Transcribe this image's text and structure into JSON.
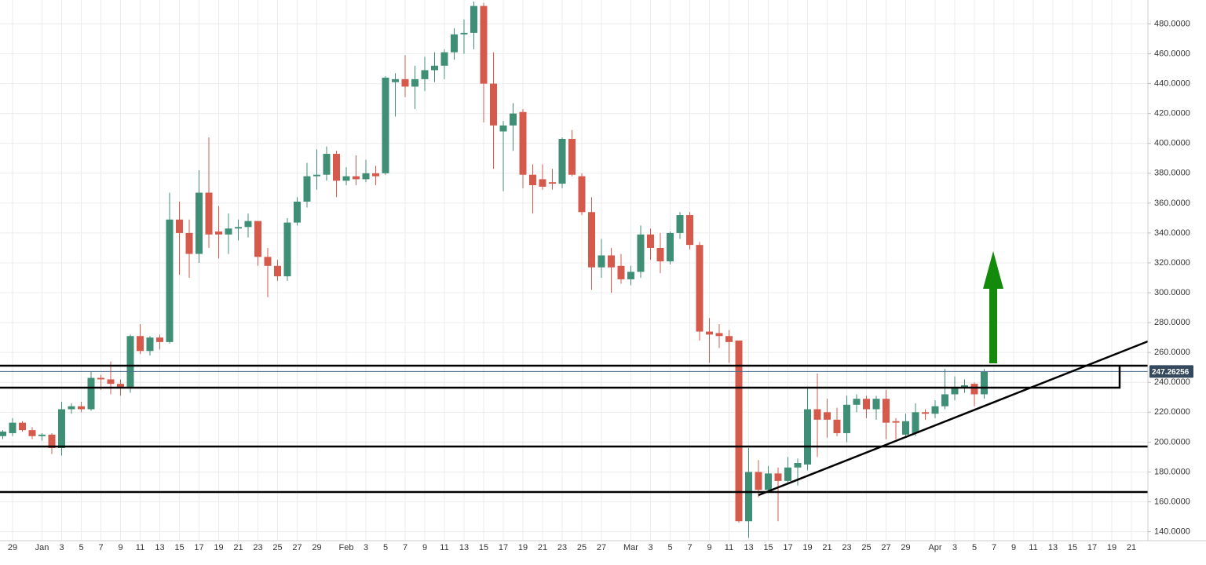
{
  "chart_data": {
    "type": "candlestick",
    "categories": [
      null,
      "29",
      null,
      null,
      "Jan",
      null,
      "3",
      null,
      "5",
      null,
      "7",
      null,
      "9",
      null,
      "11",
      null,
      "13",
      null,
      "15",
      null,
      "17",
      null,
      "19",
      null,
      "21",
      null,
      "23",
      null,
      "25",
      null,
      "27",
      null,
      "29",
      null,
      null,
      "Feb",
      null,
      "3",
      null,
      "5",
      null,
      "7",
      null,
      "9",
      null,
      "11",
      null,
      "13",
      null,
      "15",
      null,
      "17",
      null,
      "19",
      null,
      "21",
      null,
      "23",
      null,
      "25",
      null,
      "27",
      null,
      null,
      "Mar",
      null,
      "3",
      null,
      "5",
      null,
      "7",
      null,
      "9",
      null,
      "11",
      null,
      "13",
      null,
      "15",
      null,
      "17",
      null,
      "19",
      null,
      "21",
      null,
      "23",
      null,
      "25",
      null,
      "27",
      null,
      "29",
      null,
      null,
      "Apr",
      null,
      "3",
      null,
      "5",
      null,
      "7",
      null,
      "9",
      null,
      "11",
      null,
      "13",
      null,
      "15",
      null,
      "17",
      null,
      "19",
      null,
      "21",
      null
    ],
    "open": [
      204,
      206,
      213,
      208,
      204,
      205,
      196,
      222,
      224,
      222,
      243,
      242,
      239,
      237,
      271,
      261,
      270,
      267,
      349,
      340,
      326,
      367,
      341,
      339,
      343,
      344,
      348,
      324,
      318,
      311,
      347,
      361,
      378,
      379,
      393,
      375,
      378,
      376,
      380,
      380,
      441,
      443,
      438,
      443,
      449,
      452,
      461,
      473,
      474,
      492,
      440,
      408,
      412,
      421,
      379,
      376,
      374,
      373,
      403,
      378,
      354,
      317,
      325,
      318,
      309,
      314,
      339,
      330,
      321,
      340,
      352,
      332,
      274,
      273,
      271,
      268,
      147,
      180,
      168,
      179,
      174,
      183,
      185,
      222,
      220,
      215,
      206,
      225,
      229,
      222,
      229,
      214,
      205,
      206,
      220,
      219,
      224,
      232,
      236,
      239,
      232,
      null,
      null,
      null,
      null,
      null,
      null,
      null,
      null,
      null,
      null,
      null,
      null,
      null,
      null,
      null,
      null
    ],
    "high": [
      208,
      216,
      214,
      210,
      206,
      206,
      227,
      226,
      227,
      247,
      245,
      254,
      242,
      272,
      279,
      271,
      272,
      367,
      361,
      349,
      382,
      404,
      358,
      353,
      349,
      353,
      348,
      330,
      322,
      350,
      364,
      387,
      396,
      398,
      395,
      384,
      392,
      389,
      385,
      445,
      447,
      459,
      452,
      458,
      461,
      463,
      477,
      483,
      495,
      494,
      461,
      415,
      427,
      423,
      386,
      386,
      383,
      404,
      409,
      380,
      364,
      336,
      330,
      326,
      318,
      345,
      343,
      340,
      341,
      354,
      354,
      334,
      283,
      279,
      275,
      268,
      196,
      188,
      184,
      183,
      190,
      189,
      236,
      246,
      229,
      223,
      231,
      232,
      231,
      231,
      235,
      216,
      219,
      226,
      222,
      228,
      249,
      244,
      242,
      240,
      249,
      null,
      null,
      null,
      null,
      null,
      null,
      null,
      null,
      null,
      null,
      null,
      null,
      null,
      null,
      null,
      null
    ],
    "low": [
      202,
      204,
      207,
      202,
      201,
      192,
      191,
      219,
      220,
      221,
      235,
      232,
      231,
      233,
      259,
      258,
      262,
      266,
      312,
      310,
      320,
      330,
      323,
      326,
      335,
      337,
      318,
      297,
      308,
      308,
      345,
      357,
      369,
      375,
      364,
      372,
      372,
      374,
      372,
      379,
      418,
      431,
      423,
      435,
      441,
      443,
      456,
      460,
      463,
      414,
      383,
      368,
      395,
      370,
      353,
      369,
      369,
      370,
      378,
      352,
      302,
      310,
      300,
      306,
      305,
      310,
      322,
      313,
      319,
      336,
      329,
      268,
      253,
      263,
      253,
      146,
      136,
      163,
      166,
      147,
      172,
      171,
      181,
      190,
      203,
      204,
      200,
      220,
      216,
      215,
      202,
      202,
      204,
      204,
      215,
      216,
      222,
      228,
      233,
      224,
      229,
      null,
      null,
      null,
      null,
      null,
      null,
      null,
      null,
      null,
      null,
      null,
      null,
      null,
      null,
      null,
      null
    ],
    "close": [
      207,
      213,
      208,
      204,
      205,
      196,
      222,
      224,
      222,
      243,
      242,
      239,
      237,
      271,
      261,
      270,
      267,
      349,
      340,
      326,
      367,
      339,
      339,
      343,
      344,
      348,
      324,
      318,
      311,
      347,
      361,
      378,
      379,
      393,
      375,
      378,
      376,
      380,
      378,
      444,
      443,
      438,
      443,
      449,
      452,
      461,
      473,
      474,
      492,
      440,
      412,
      412,
      420,
      379,
      372,
      371,
      373,
      403,
      379,
      354,
      317,
      325,
      317,
      309,
      314,
      339,
      330,
      321,
      340,
      352,
      332,
      274,
      272,
      271,
      267,
      147,
      180,
      168,
      179,
      174,
      183,
      186,
      222,
      215,
      215,
      206,
      225,
      229,
      222,
      229,
      213,
      213,
      214,
      220,
      219,
      224,
      232,
      236,
      238,
      232,
      247,
      null,
      null,
      null,
      null,
      null,
      null,
      null,
      null,
      null,
      null,
      null,
      null,
      null,
      null,
      null,
      null
    ],
    "up_color": "#3f8f76",
    "down_color": "#d65a4c",
    "last_price": 247.26256,
    "ylim": [
      134,
      496
    ],
    "yticks": [
      {
        "value": 140,
        "label": "140.0000"
      },
      {
        "value": 160,
        "label": "160.0000"
      },
      {
        "value": 180,
        "label": "180.0000"
      },
      {
        "value": 200,
        "label": "200.0000"
      },
      {
        "value": 220,
        "label": "220.0000"
      },
      {
        "value": 240,
        "label": "240.0000"
      },
      {
        "value": 260,
        "label": "260.0000"
      },
      {
        "value": 280,
        "label": "280.0000"
      },
      {
        "value": 300,
        "label": "300.0000"
      },
      {
        "value": 320,
        "label": "320.0000"
      },
      {
        "value": 340,
        "label": "340.0000"
      },
      {
        "value": 360,
        "label": "360.0000"
      },
      {
        "value": 380,
        "label": "380.0000"
      },
      {
        "value": 400,
        "label": "400.0000"
      },
      {
        "value": 420,
        "label": "420.0000"
      },
      {
        "value": 440,
        "label": "440.0000"
      },
      {
        "value": 460,
        "label": "460.0000"
      },
      {
        "value": 480,
        "label": "480.0000"
      }
    ],
    "grid": true
  }
}
